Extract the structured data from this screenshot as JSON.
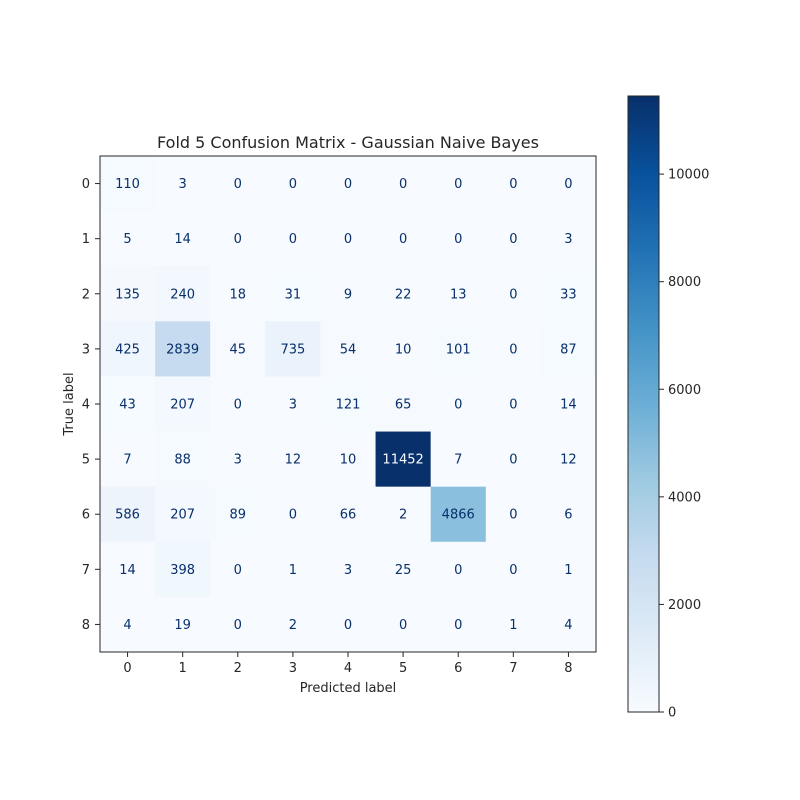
{
  "chart_data": {
    "type": "heatmap",
    "title": "Fold 5 Confusion Matrix - Gaussian Naive Bayes",
    "xlabel": "Predicted label",
    "ylabel": "True label",
    "x_tick_labels": [
      "0",
      "1",
      "2",
      "3",
      "4",
      "5",
      "6",
      "7",
      "8"
    ],
    "y_tick_labels": [
      "0",
      "1",
      "2",
      "3",
      "4",
      "5",
      "6",
      "7",
      "8"
    ],
    "matrix": [
      [
        110,
        3,
        0,
        0,
        0,
        0,
        0,
        0,
        0
      ],
      [
        5,
        14,
        0,
        0,
        0,
        0,
        0,
        0,
        3
      ],
      [
        135,
        240,
        18,
        31,
        9,
        22,
        13,
        0,
        33
      ],
      [
        425,
        2839,
        45,
        735,
        54,
        10,
        101,
        0,
        87
      ],
      [
        43,
        207,
        0,
        3,
        121,
        65,
        0,
        0,
        14
      ],
      [
        7,
        88,
        3,
        12,
        10,
        11452,
        7,
        0,
        12
      ],
      [
        586,
        207,
        89,
        0,
        66,
        2,
        4866,
        0,
        6
      ],
      [
        14,
        398,
        0,
        1,
        3,
        25,
        0,
        0,
        1
      ],
      [
        4,
        19,
        0,
        2,
        0,
        0,
        0,
        1,
        4
      ]
    ],
    "colormap": "Blues",
    "colorbar": {
      "range": [
        0,
        11452
      ],
      "ticks": [
        0,
        2000,
        4000,
        6000,
        8000,
        10000
      ]
    },
    "grid": false
  }
}
